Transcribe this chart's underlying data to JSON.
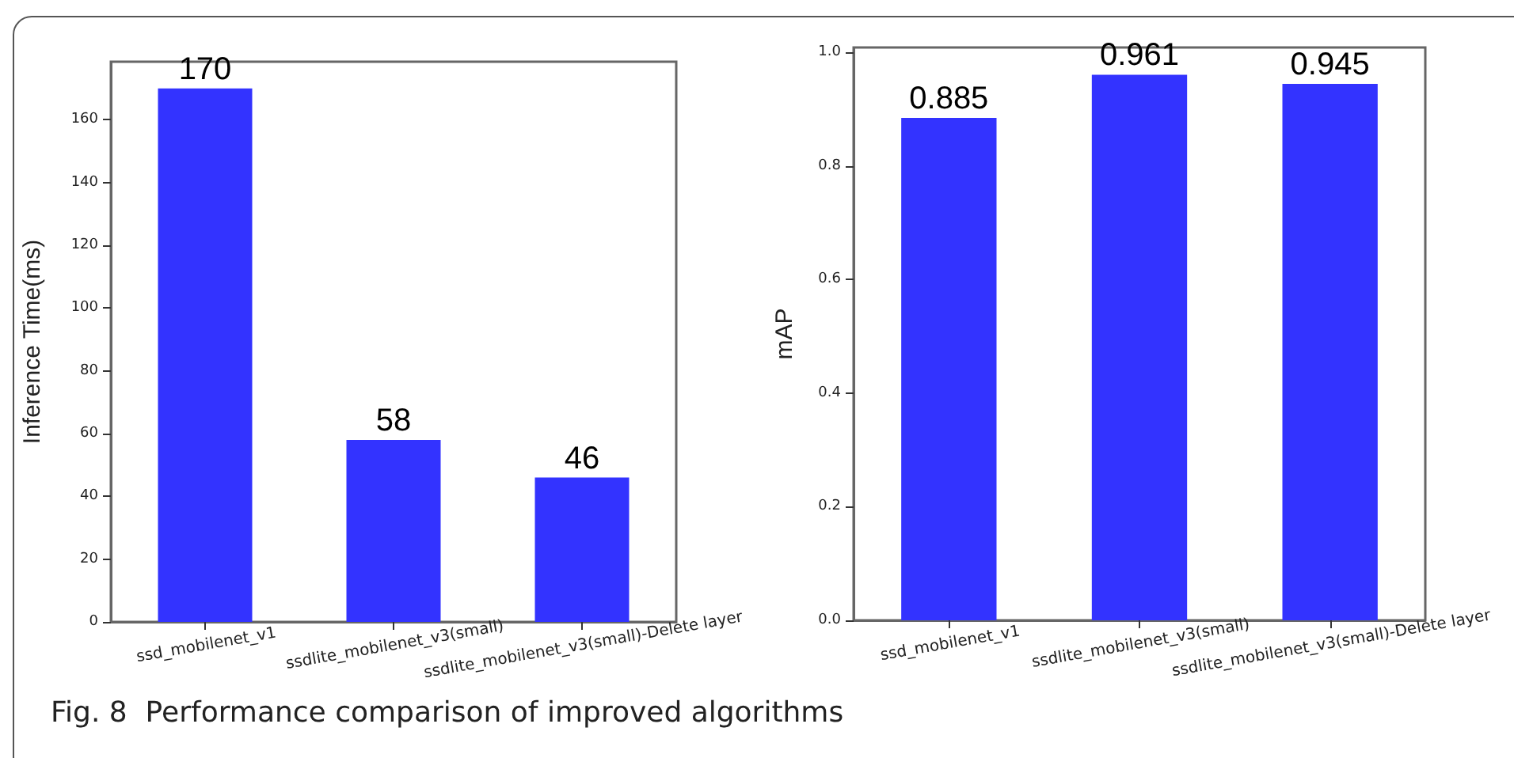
{
  "chart_data": [
    {
      "type": "bar",
      "ylabel": "Inference Time(ms)",
      "categories": [
        "ssd_mobilenet_v1",
        "ssdlite_mobilenet_v3(small)",
        "ssdlite_mobilenet_v3(small)-Delete layer"
      ],
      "values": [
        170,
        58,
        46
      ],
      "color": "#3333ff",
      "data_labels": true,
      "ylim": [
        0,
        178.5
      ],
      "yticks": [
        0,
        20,
        40,
        60,
        80,
        100,
        120,
        140,
        160
      ],
      "annotations": [
        "Fig. 8  Performance comparison of improved algorithms"
      ]
    },
    {
      "type": "bar",
      "ylabel": "mAP",
      "categories": [
        "ssd_mobilenet_v1",
        "ssdlite_mobilenet_v3(small)",
        "ssdlite_mobilenet_v3(small)-Delete layer"
      ],
      "values": [
        0.885,
        0.961,
        0.945
      ],
      "color": "#3333ff",
      "data_labels": true,
      "ylim": [
        0,
        1.009
      ],
      "yticks": [
        {
          "value": 0,
          "label": "0.0"
        },
        {
          "value": 0.2,
          "label": "0.2"
        },
        {
          "value": 0.4,
          "label": "0.4"
        },
        {
          "value": 0.6,
          "label": "0.6"
        },
        {
          "value": 0.8,
          "label": "0.8"
        },
        {
          "value": 1,
          "label": "1.0"
        }
      ]
    }
  ]
}
